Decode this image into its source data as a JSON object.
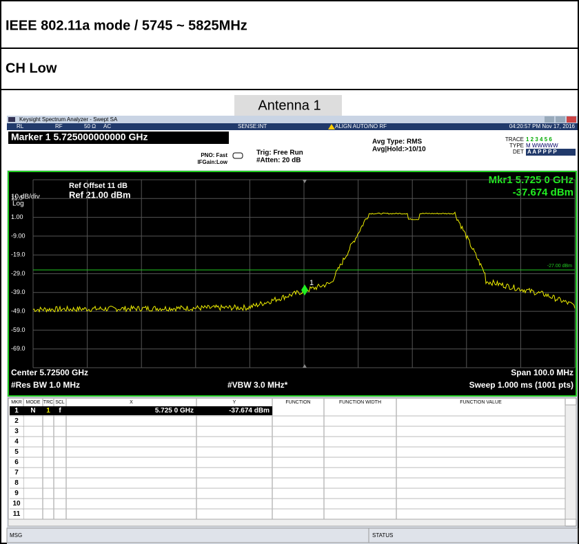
{
  "header": {
    "title": "IEEE 802.11a mode / 5745 ~ 5825MHz",
    "channel": "CH Low",
    "antenna": "Antenna 1"
  },
  "window": {
    "title": "Keysight Spectrum Analyzer - Swept SA",
    "status": [
      "RL",
      "RF",
      "50 Ω",
      "AC",
      "SENSE:INT",
      "ALIGN AUTO/NO RF",
      "04:20:57 PM Nov 17, 2016"
    ]
  },
  "settings": {
    "marker": "Marker 1 5.725000000000 GHz",
    "pno": "PNO: Fast",
    "ifgain": "IFGain:Low",
    "trig": "Trig: Free Run",
    "atten": "#Atten: 20 dB",
    "avg_type": "Avg Type: RMS",
    "avg_hold": "Avg|Hold:>10/10",
    "trace_label": "TRACE",
    "trace_nums": "1 2 3 4 5 6",
    "type_label": "TYPE",
    "type_value": "M WWWWW",
    "det_label": "DET",
    "det_value": "A A P P P P"
  },
  "display": {
    "ref_offset": "Ref Offset 11 dB",
    "scale": "10 dB/div",
    "ref_level": "Ref 21.00 dBm",
    "log": "Log",
    "mkr_freq": "Mkr1 5.725 0 GHz",
    "mkr_level": "-37.674 dBm",
    "y_labels": [
      "11.0",
      "1.00",
      "-9.00",
      "-19.0",
      "-29.0",
      "-39.0",
      "-49.0",
      "-59.0",
      "-69.0"
    ],
    "display_line": "-27.00 dBm",
    "marker_label": "1",
    "center": "Center 5.72500 GHz",
    "span": "Span 100.0 MHz",
    "rbw": "#Res BW 1.0 MHz",
    "vbw": "#VBW 3.0 MHz*",
    "sweep": "Sweep  1.000 ms (1001 pts)"
  },
  "marker_table": {
    "columns": [
      "MKR",
      "MODE",
      "TRC",
      "SCL",
      "X",
      "Y",
      "FUNCTION",
      "FUNCTION WIDTH",
      "FUNCTION VALUE"
    ],
    "rows": [
      [
        "1",
        "N",
        "1",
        "f",
        "5.725 0 GHz",
        "-37.674 dBm"
      ],
      [
        "2"
      ],
      [
        "3"
      ],
      [
        "4"
      ],
      [
        "5"
      ],
      [
        "6"
      ],
      [
        "7"
      ],
      [
        "8"
      ],
      [
        "9"
      ],
      [
        "10"
      ],
      [
        "11"
      ]
    ]
  },
  "footer": {
    "msg": "MSG",
    "status": "STATUS"
  }
}
